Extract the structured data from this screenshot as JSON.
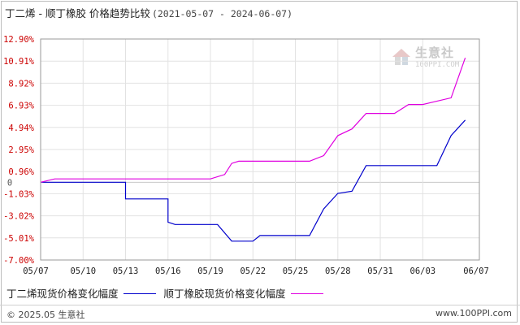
{
  "title": {
    "main": "丁二烯 - 顺丁橡胶 价格趋势比较",
    "range": "(2021-05-07 - 2024-06-07)"
  },
  "watermark": {
    "cn": "生意社",
    "en": "100PPI.COM"
  },
  "legend": [
    {
      "label": "丁二烯现货价格变化幅度",
      "color": "#0000cc"
    },
    {
      "label": "顺丁橡胶现货价格变化幅度",
      "color": "#e000e0"
    }
  ],
  "footer": {
    "left": "© 2025.05 生意社",
    "right": "www.100PPI.com"
  },
  "chart_data": {
    "type": "line",
    "ylim": [
      -7.0,
      12.9
    ],
    "y_ticks": [
      "12.90%",
      "10.91%",
      "8.92%",
      "6.93%",
      "4.94%",
      "2.95%",
      "0.96%",
      "0",
      "-1.03%",
      "-3.02%",
      "-5.01%",
      "-7.00%"
    ],
    "y_tick_values": [
      12.9,
      10.91,
      8.92,
      6.93,
      4.94,
      2.95,
      0.96,
      0,
      -1.03,
      -3.02,
      -5.01,
      -7.0
    ],
    "x_ticks": [
      "05/07",
      "05/10",
      "05/13",
      "05/16",
      "05/19",
      "05/22",
      "05/25",
      "05/28",
      "05/31",
      "06/03",
      "06/07"
    ],
    "x_range": [
      0,
      31
    ],
    "x_tick_positions": [
      0,
      3,
      6,
      9,
      12,
      15,
      18,
      21,
      24,
      27,
      31
    ],
    "grid": true,
    "series": [
      {
        "name": "丁二烯现货价格变化幅度",
        "color": "#0000cc",
        "points": [
          [
            0,
            0
          ],
          [
            6,
            0
          ],
          [
            6,
            -1.5
          ],
          [
            9,
            -1.5
          ],
          [
            9,
            -3.6
          ],
          [
            9.5,
            -3.8
          ],
          [
            12.5,
            -3.8
          ],
          [
            13.5,
            -5.3
          ],
          [
            15,
            -5.3
          ],
          [
            15.5,
            -4.8
          ],
          [
            19,
            -4.8
          ],
          [
            20,
            -2.4
          ],
          [
            21,
            -1.0
          ],
          [
            22,
            -0.8
          ],
          [
            23,
            1.5
          ],
          [
            28,
            1.5
          ],
          [
            29,
            4.2
          ],
          [
            30,
            5.6
          ]
        ]
      },
      {
        "name": "顺丁橡胶现货价格变化幅度",
        "color": "#e000e0",
        "points": [
          [
            0,
            0
          ],
          [
            1,
            0.3
          ],
          [
            12,
            0.3
          ],
          [
            13,
            0.7
          ],
          [
            13.5,
            1.7
          ],
          [
            14,
            1.9
          ],
          [
            19,
            1.9
          ],
          [
            20,
            2.4
          ],
          [
            21,
            4.2
          ],
          [
            22,
            4.8
          ],
          [
            23,
            6.2
          ],
          [
            25,
            6.2
          ],
          [
            26,
            7.0
          ],
          [
            27,
            7.0
          ],
          [
            29,
            7.6
          ],
          [
            30,
            11.2
          ]
        ]
      }
    ]
  }
}
